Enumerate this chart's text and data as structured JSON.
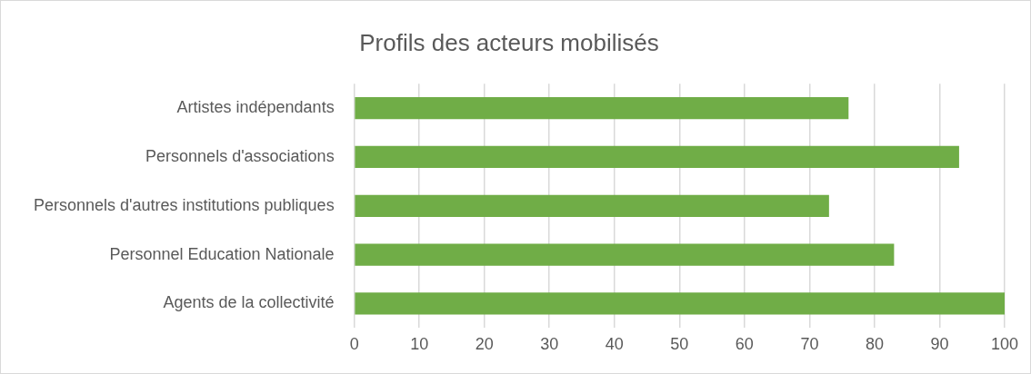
{
  "chart_data": {
    "type": "bar",
    "orientation": "horizontal",
    "title": "Profils des acteurs mobilisés",
    "categories": [
      "Artistes indépendants",
      "Personnels d'associations",
      "Personnels d'autres institutions publiques",
      "Personnel Education Nationale",
      "Agents de la collectivité"
    ],
    "values": [
      76,
      93,
      73,
      83,
      100
    ],
    "color": "#70ad47",
    "xlim": [
      0,
      100
    ],
    "xticks": [
      0,
      10,
      20,
      30,
      40,
      50,
      60,
      70,
      80,
      90,
      100
    ],
    "grid": "x",
    "legend": false
  }
}
